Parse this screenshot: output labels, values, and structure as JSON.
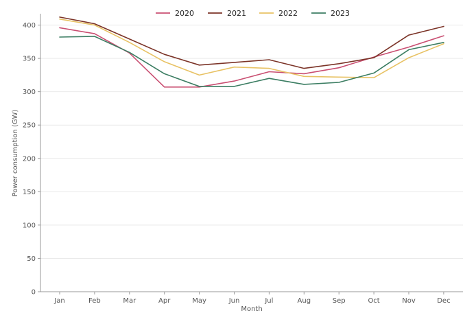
{
  "chart_data": {
    "type": "line",
    "xlabel": "Month",
    "ylabel": "Power consumption (GW)",
    "ylim": [
      0,
      417
    ],
    "yticks": [
      0,
      50,
      100,
      150,
      200,
      250,
      300,
      350,
      400
    ],
    "grid": "horizontal",
    "legend_position": "top-center",
    "categories": [
      "Jan",
      "Feb",
      "Mar",
      "Apr",
      "May",
      "Jun",
      "Jul",
      "Aug",
      "Sep",
      "Oct",
      "Nov",
      "Dec"
    ],
    "series": [
      {
        "name": "2020",
        "color": "#c94f72",
        "values": [
          396,
          387,
          358,
          307,
          307,
          316,
          330,
          327,
          336,
          352,
          367,
          384
        ]
      },
      {
        "name": "2021",
        "color": "#7b3327",
        "values": [
          412,
          402,
          379,
          356,
          340,
          344,
          348,
          335,
          342,
          351,
          385,
          398
        ]
      },
      {
        "name": "2022",
        "color": "#e8c264",
        "values": [
          409,
          400,
          374,
          345,
          325,
          337,
          335,
          323,
          322,
          321,
          351,
          372
        ]
      },
      {
        "name": "2023",
        "color": "#3b7d62",
        "values": [
          382,
          383,
          359,
          327,
          308,
          308,
          320,
          311,
          314,
          328,
          363,
          374
        ]
      }
    ]
  }
}
